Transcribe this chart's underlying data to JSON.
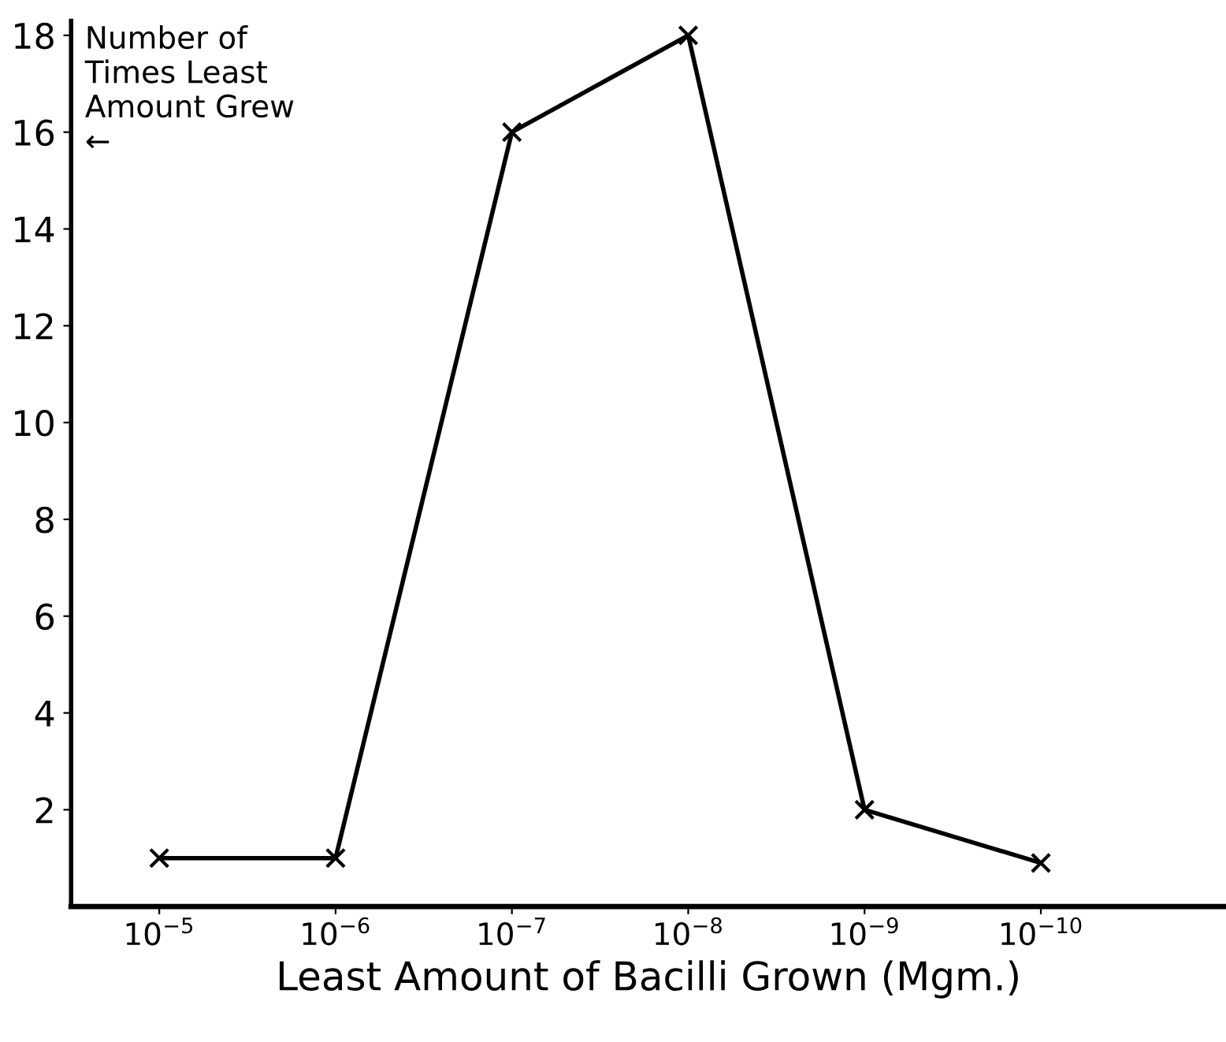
{
  "chart_data": {
    "type": "line",
    "xlabel": "Least Amount of Bacilli Grown (Mgm.)",
    "ylabel": "Number of\nTimes Least\nAmount Grew\n←",
    "categories": [
      "10$^{−5}$",
      "10$^{−6}$",
      "10$^{−7}$",
      "10$^{−8}$",
      "10$^{−9}$",
      "10$^{−10}$"
    ],
    "series": [
      {
        "color": "#000000",
        "values": [
          1,
          1,
          16,
          18,
          2,
          0.9
        ]
      }
    ],
    "ylim": [
      0,
      18.3
    ],
    "yticks": [
      2,
      4,
      6,
      8,
      10,
      12,
      14,
      16,
      18
    ],
    "marker": "cross",
    "line_style": "solid",
    "grid": false,
    "legend": false
  }
}
